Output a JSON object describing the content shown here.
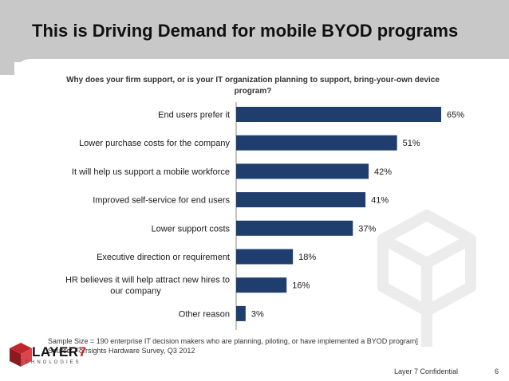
{
  "slide": {
    "title": "This is Driving Demand for mobile BYOD programs",
    "question": "Why does your firm support, or is your IT organization planning to support, bring-your-own device program?",
    "footnote_line1": "Sample Size = 190 enterprise IT decision makers who are  planning, piloting, or have implemented a BYOD program]",
    "footnote_line2": "Source: Forrsights Hardware Survey, Q3 2012",
    "confidential": "Layer 7 Confidential",
    "page_number": "6",
    "logo": {
      "text_main": "LAYER",
      "text_seven": "7",
      "subtext": "TECHNOLOGIES"
    }
  },
  "chart_data": {
    "type": "bar",
    "orientation": "horizontal",
    "categories": [
      "End users prefer it",
      "Lower purchase costs for the company",
      "It will help us support a mobile workforce",
      "Improved self-service for end users",
      "Lower support costs",
      "Executive direction or requirement",
      "HR believes it will help attract new hires to our company",
      "Other reason"
    ],
    "values": [
      65,
      51,
      42,
      41,
      37,
      18,
      16,
      3
    ],
    "value_labels": [
      "65%",
      "51%",
      "42%",
      "41%",
      "37%",
      "18%",
      "16%",
      "3%"
    ],
    "xlim": [
      0,
      65
    ],
    "bar_color": "#1f3e6e",
    "grid": false,
    "legend": "none"
  }
}
